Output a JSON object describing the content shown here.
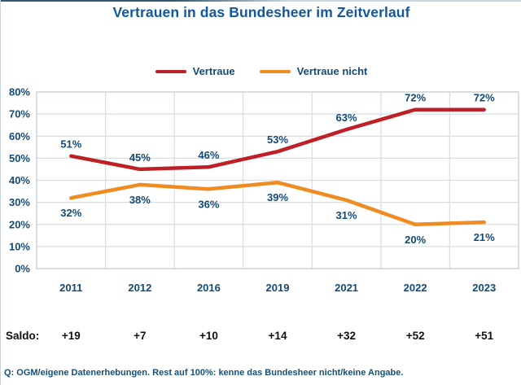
{
  "page": {
    "title": "Vertrauen in das Bundesheer im Zeitverlauf",
    "saldo_label": "Saldo:",
    "footer": "Q: OGM/eigene Datenerhebungen. Rest auf 100%: kenne das Bundesheer nicht/keine Angabe."
  },
  "colors": {
    "title_blue": "#1257A0",
    "label_blue": "#134A78",
    "trust_red": "#BE2026",
    "distrust_orange": "#F08B22",
    "grid_gray": "#D8DEE2",
    "plot_border": "#C3CDD3",
    "saldo_black": "#111111",
    "footer_blue": "#155079"
  },
  "chart_data": {
    "type": "line",
    "title": "Vertrauen in das Bundesheer im Zeitverlauf",
    "categories": [
      "2011",
      "2012",
      "2016",
      "2019",
      "2021",
      "2022",
      "2023"
    ],
    "series": [
      {
        "name": "Vertraue",
        "color_key": "trust_red",
        "values": [
          51,
          45,
          46,
          53,
          63,
          72,
          72
        ]
      },
      {
        "name": "Vertraue nicht",
        "color_key": "distrust_orange",
        "values": [
          32,
          38,
          36,
          39,
          31,
          20,
          21
        ]
      }
    ],
    "saldo": [
      "+19",
      "+7",
      "+10",
      "+14",
      "+32",
      "+52",
      "+51"
    ],
    "ylim": [
      0,
      80
    ],
    "ytick_step": 10,
    "ytick_suffix": "%",
    "value_suffix": "%",
    "grid": true,
    "legend_position": "top"
  }
}
